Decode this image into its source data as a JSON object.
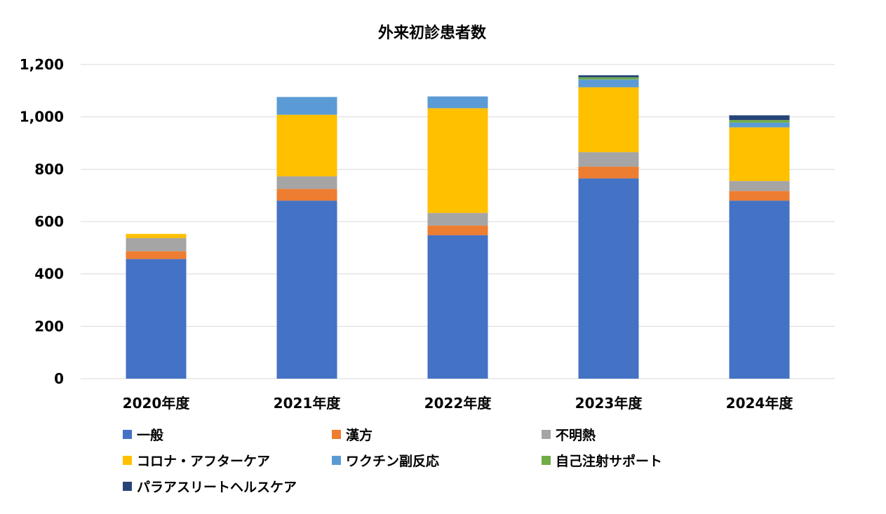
{
  "chart_data": {
    "type": "bar",
    "stacked": true,
    "title": "外来初診患者数",
    "xlabel": "",
    "ylabel": "",
    "ylim": [
      0,
      1200
    ],
    "yticks": [
      0,
      200,
      400,
      600,
      800,
      1000,
      1200
    ],
    "ytick_labels": [
      "0",
      "200",
      "400",
      "600",
      "800",
      "1,000",
      "1,200"
    ],
    "grid": true,
    "legend_position": "bottom",
    "categories": [
      "2020年度",
      "2021年度",
      "2022年度",
      "2023年度",
      "2024年度"
    ],
    "series": [
      {
        "name": "一般",
        "color": "#4472C4",
        "values": [
          457,
          680,
          548,
          765,
          680
        ]
      },
      {
        "name": "漢方",
        "color": "#ED7D31",
        "values": [
          30,
          45,
          37,
          45,
          37
        ]
      },
      {
        "name": "不明熱",
        "color": "#A5A5A5",
        "values": [
          50,
          48,
          48,
          55,
          38
        ]
      },
      {
        "name": "コロナ・アフターケア",
        "color": "#FFC000",
        "values": [
          16,
          235,
          400,
          248,
          205
        ]
      },
      {
        "name": "ワクチン副反応",
        "color": "#5B9BD5",
        "values": [
          0,
          68,
          45,
          30,
          18
        ]
      },
      {
        "name": "自己注射サポート",
        "color": "#70AD47",
        "values": [
          0,
          0,
          0,
          8,
          10
        ]
      },
      {
        "name": "パラアスリートヘルスケア",
        "color": "#264478",
        "values": [
          0,
          0,
          0,
          8,
          18
        ]
      }
    ]
  }
}
